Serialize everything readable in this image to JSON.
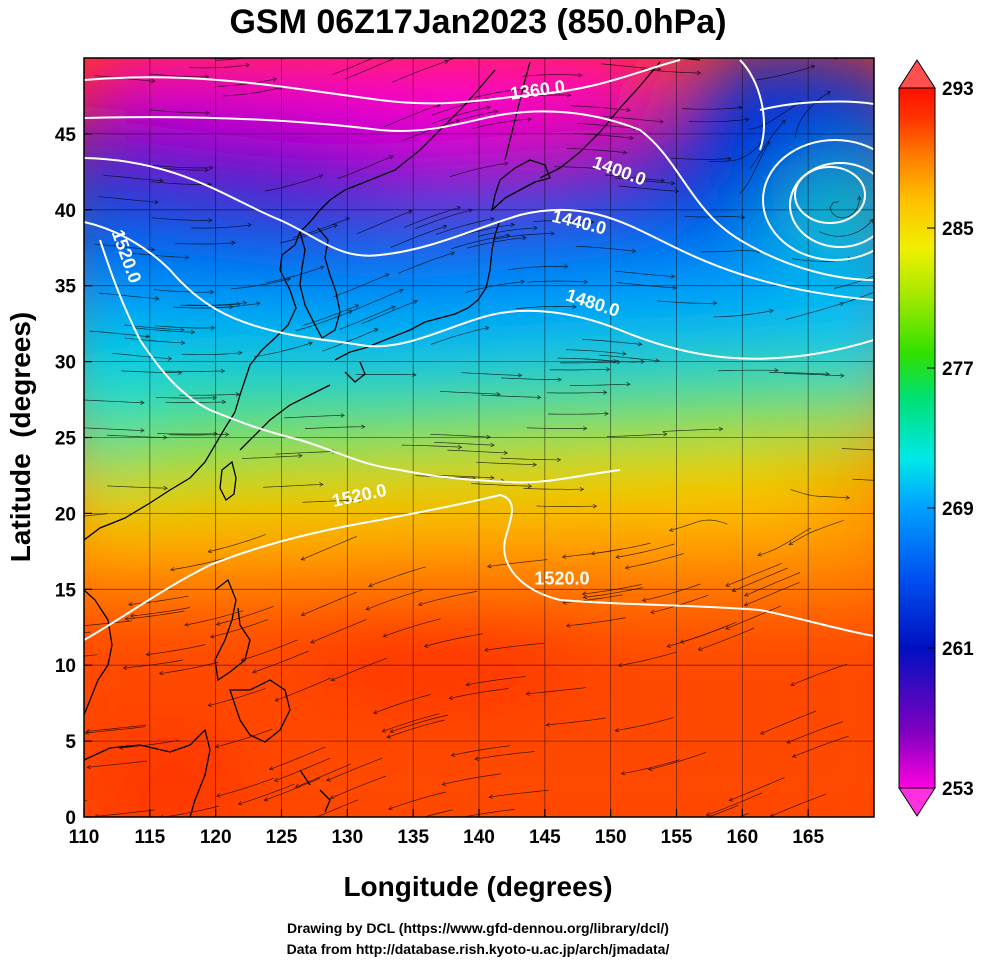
{
  "title": "GSM 06Z17Jan2023 (850.0hPa)",
  "xlabel": "Longitude (degrees)",
  "ylabel": "Latitude  (degrees)",
  "credits": [
    "Drawing by DCL (https://www.gfd-dennou.org/library/dcl/)",
    "Data from http://database.rish.kyoto-u.ac.jp/arch/jmadata/"
  ],
  "map": {
    "lon_range": [
      110,
      170
    ],
    "lat_range": [
      0,
      50
    ],
    "lon_ticks": [
      110,
      115,
      120,
      125,
      130,
      135,
      140,
      145,
      150,
      155,
      160,
      165
    ],
    "lat_ticks": [
      0,
      5,
      10,
      15,
      20,
      25,
      30,
      35,
      40,
      45
    ],
    "grid": true
  },
  "colorbar": {
    "min": 253,
    "max": 293,
    "labels": [
      "293",
      "285",
      "277",
      "269",
      "261",
      "253"
    ],
    "label_values": [
      293,
      285,
      277,
      269,
      261,
      253
    ],
    "colors": [
      "#ff00e0",
      "#8000c0",
      "#0010c0",
      "#0050f0",
      "#00a0ff",
      "#00e8e8",
      "#00e070",
      "#30e000",
      "#a0e800",
      "#f0f000",
      "#ffc000",
      "#ff8000",
      "#ff3000",
      "#ff1000"
    ]
  },
  "contours": [
    {
      "label": "1360.0",
      "lon": 144.5,
      "lat": 47.5
    },
    {
      "label": "1400.0",
      "lon": 150.5,
      "lat": 42.2
    },
    {
      "label": "1440.0",
      "lon": 147.5,
      "lat": 38.8
    },
    {
      "label": "1480.0",
      "lon": 148.5,
      "lat": 33.5
    },
    {
      "label": "1520.0",
      "lon": 112.8,
      "lat": 36.8
    },
    {
      "label": "1520.0",
      "lon": 131.0,
      "lat": 20.8
    },
    {
      "label": "1520.0",
      "lon": 146.3,
      "lat": 15.3
    }
  ]
}
